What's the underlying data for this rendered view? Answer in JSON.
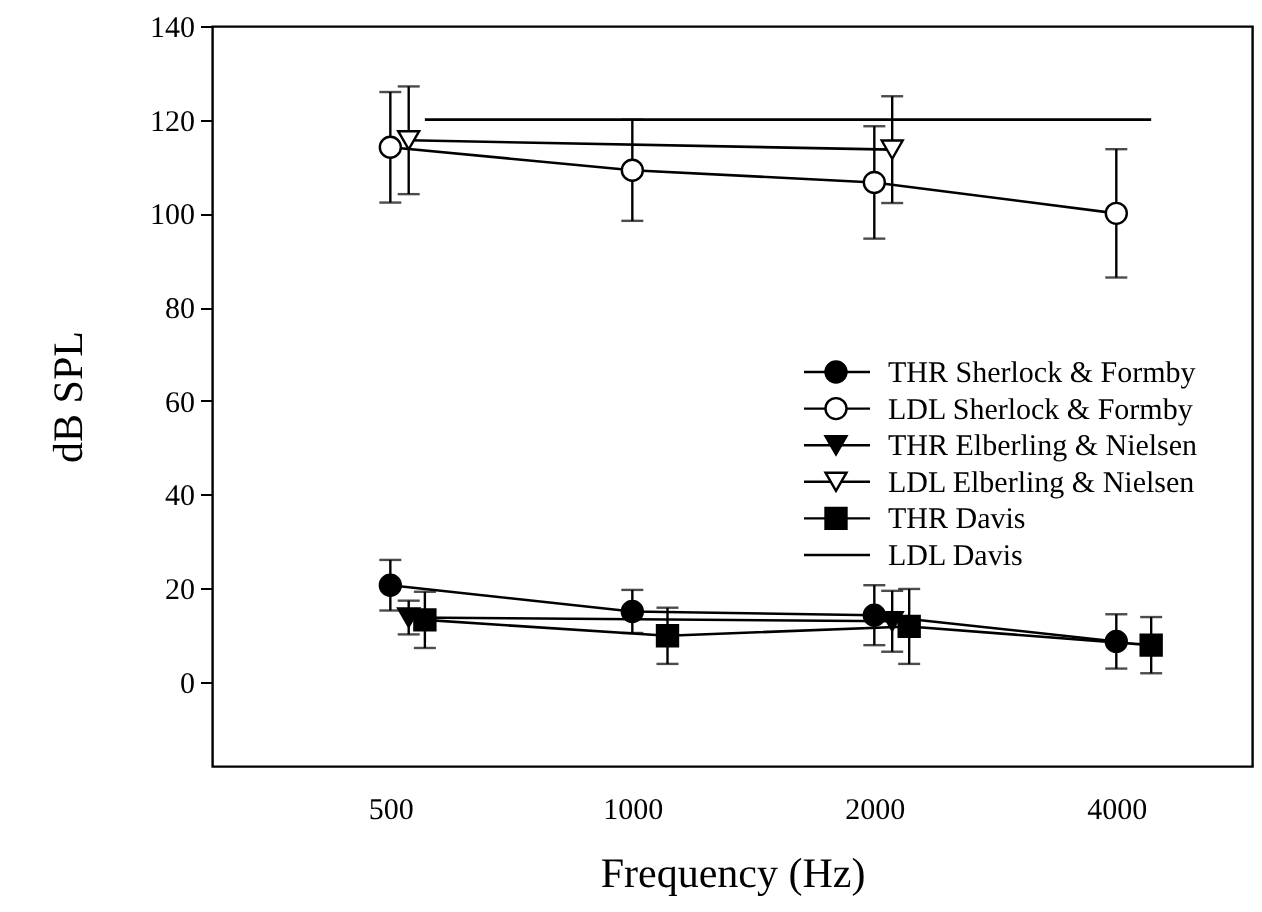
{
  "chart_data": {
    "type": "line",
    "xlabel": "Frequency (Hz)",
    "ylabel": "dB SPL",
    "log": "x",
    "xlim": [
      300,
      5900
    ],
    "xticks": [
      500,
      1000,
      2000,
      4000
    ],
    "ylim": [
      -18,
      140
    ],
    "yticks": [
      0,
      20,
      40,
      60,
      80,
      100,
      120,
      140
    ],
    "grid": false,
    "legend": "right",
    "line_style": "solid",
    "series": [
      {
        "name": "THR Sherlock & Formby",
        "color": "#000000",
        "marker": "circle",
        "x": [
          500,
          1000,
          2000,
          4000
        ],
        "values": [
          20.6,
          15.0,
          14.2,
          8.6
        ],
        "errors": [
          5.4,
          4.6,
          6.4,
          5.8
        ]
      },
      {
        "name": "LDL Sherlock & Formby",
        "color": "#000000",
        "marker": "circle",
        "x": [
          500,
          1000,
          2000,
          4000
        ],
        "values": [
          114.1,
          109.2,
          106.6,
          100.0
        ],
        "errors": [
          11.8,
          10.8,
          12,
          13.7
        ]
      },
      {
        "name": "THR Elberling & Nielsen",
        "color": "#000000",
        "marker": "triangle",
        "x": [
          527,
          2105
        ],
        "values": [
          13.7,
          12.9
        ],
        "errors": [
          3.6,
          6.5
        ]
      },
      {
        "name": "LDL Elberling & Nielsen",
        "color": "#000000",
        "marker": "triangle",
        "x": [
          527,
          2105
        ],
        "values": [
          115.6,
          113.6
        ],
        "errors": [
          11.5,
          11.4
        ]
      },
      {
        "name": "THR Davis",
        "color": "#000000",
        "marker": "square",
        "x": [
          552,
          1106,
          2210,
          4420
        ],
        "values": [
          13.2,
          9.8,
          11.8,
          7.8
        ],
        "errors": [
          6,
          6,
          8,
          6
        ]
      },
      {
        "name": "LDL Davis",
        "color": "#000000",
        "marker": "none",
        "x": [
          552,
          4420
        ],
        "values": [
          120,
          120
        ]
      }
    ]
  }
}
